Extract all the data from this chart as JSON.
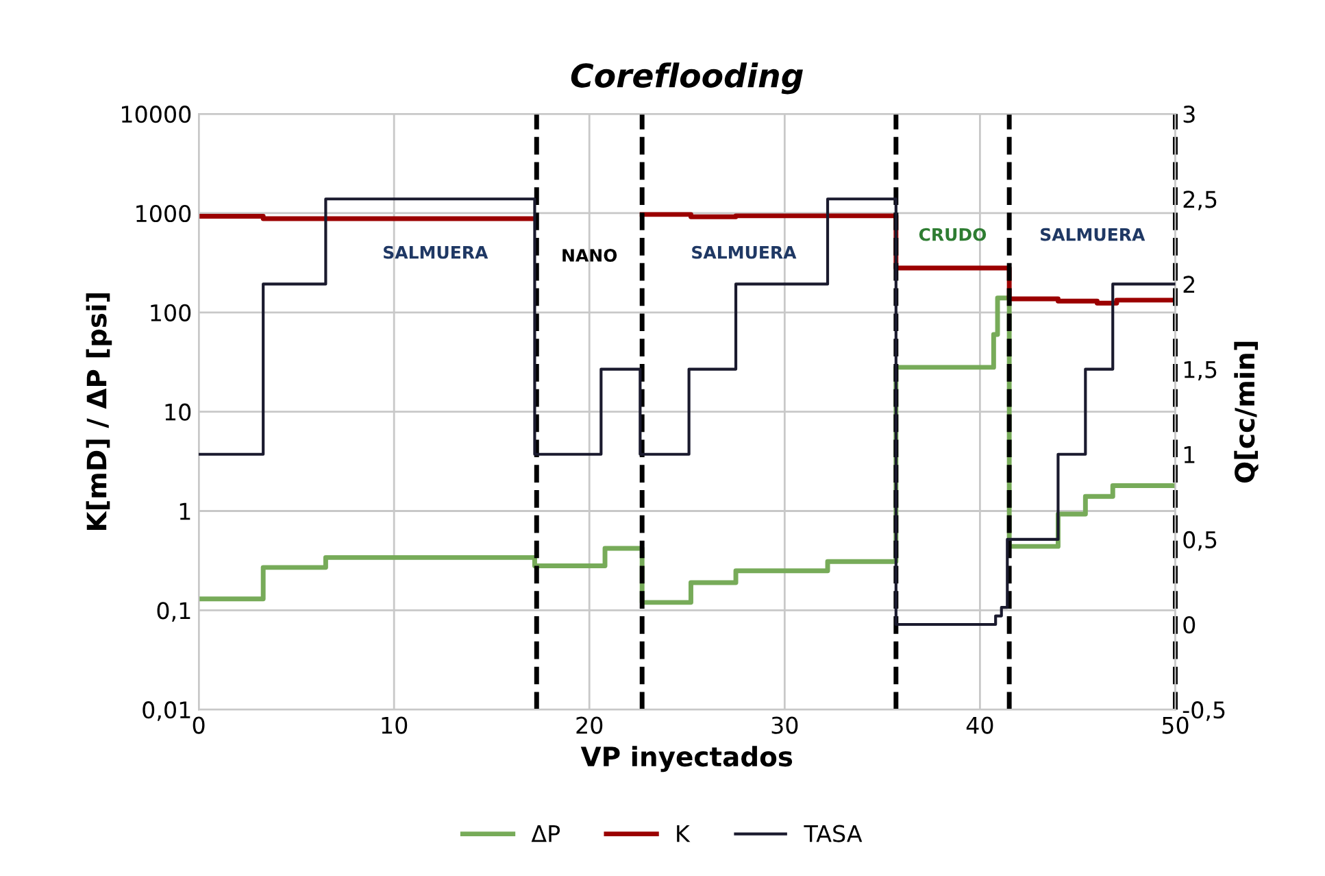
{
  "chart_data": {
    "type": "step",
    "title": "Coreflooding",
    "xlabel": "VP inyectados",
    "ylabel": "K[mD] / ΔP [psi]",
    "y2label": "Q[cc/min]",
    "log": "y",
    "grid": true,
    "legend": "bottom",
    "marker": "none",
    "line_style": "solid",
    "xlim": [
      0,
      50
    ],
    "xticks": [
      0,
      10,
      20,
      30,
      40,
      50
    ],
    "ylim": [
      0.01,
      10000
    ],
    "yticks": [
      {
        "value": 0.01,
        "label": "0,01"
      },
      {
        "value": 0.1,
        "label": "0,1"
      },
      1,
      10,
      100,
      1000,
      10000
    ],
    "y2lim": [
      -0.5,
      3
    ],
    "y2ticks": [
      {
        "value": -0.5,
        "label": "-0,5"
      },
      0,
      {
        "value": 0.5,
        "label": "0,5"
      },
      1,
      {
        "value": 1.5,
        "label": "1,5"
      },
      2,
      {
        "value": 2.5,
        "label": "2,5"
      },
      3
    ],
    "series": [
      {
        "name": "ΔP",
        "color": "#77ab59",
        "x": [
          0,
          3.3,
          6.5,
          17.2,
          20.8,
          22.7,
          25.2,
          27.5,
          32.2,
          35.7,
          40.7,
          40.9,
          41.1,
          41.5,
          44.0,
          45.4,
          46.8,
          50
        ],
        "values": [
          0.13,
          0.27,
          0.34,
          0.28,
          0.42,
          0.12,
          0.19,
          0.25,
          0.31,
          28,
          60,
          140,
          140,
          0.44,
          0.93,
          1.4,
          1.8,
          1.8
        ]
      },
      {
        "name": "K",
        "color": "#9b0000",
        "x": [
          0,
          3.3,
          17.2,
          22.7,
          25.2,
          27.5,
          35.7,
          41.5,
          44.0,
          46.0,
          47.0,
          50
        ],
        "values": [
          930,
          880,
          null,
          970,
          920,
          940,
          280,
          137,
          130,
          124,
          133,
          133
        ]
      },
      {
        "name": "TASA",
        "color": "#1a1a2e",
        "axis": "y2",
        "x": [
          0,
          3.3,
          6.5,
          17.2,
          20.6,
          22.6,
          25.1,
          27.5,
          32.2,
          35.7,
          40.8,
          41.1,
          41.4,
          44.0,
          45.4,
          46.8,
          50
        ],
        "values": [
          1,
          2,
          2.5,
          1,
          1.5,
          1,
          1.5,
          2,
          2.5,
          0,
          0.05,
          0.1,
          0.5,
          1,
          1.5,
          2,
          2
        ]
      }
    ],
    "ref_lines": [
      {
        "axis": "x",
        "value": 17.3,
        "color": "#000000",
        "line_style": "dashed"
      },
      {
        "axis": "x",
        "value": 22.7,
        "color": "#000000",
        "line_style": "dashed"
      },
      {
        "axis": "x",
        "value": 35.7,
        "color": "#000000",
        "line_style": "dashed"
      },
      {
        "axis": "x",
        "value": 41.5,
        "color": "#000000",
        "line_style": "dashed"
      },
      {
        "axis": "x",
        "value": 50,
        "color": "#000000",
        "line_style": "dashed"
      }
    ],
    "annotations": [
      "SALMUERA",
      "NANO",
      "SALMUERA",
      "CRUDO",
      "SALMUERA"
    ]
  }
}
